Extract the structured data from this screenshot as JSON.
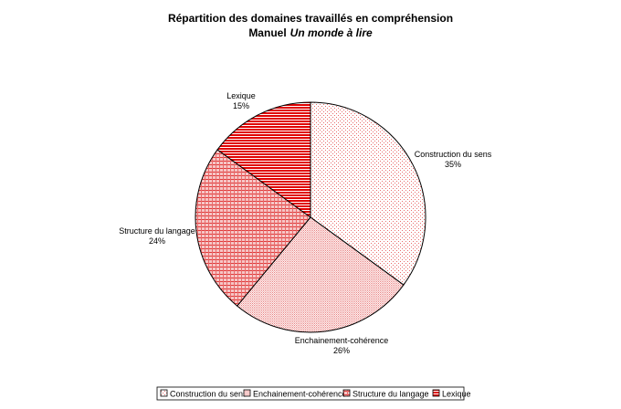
{
  "chart_data": {
    "type": "pie",
    "title": "Répartition des domaines travaillés en compréhension",
    "subtitle_prefix": "Manuel",
    "subtitle_italic": "Un monde à lire",
    "start_angle_deg": 0,
    "direction": "clockwise",
    "legend_placement": "bottom",
    "slices": [
      {
        "name": "Construction du sens",
        "value": 35,
        "label": "35%",
        "color": "#e86a6a",
        "pattern": "dots-sparse"
      },
      {
        "name": "Enchainement-cohérence",
        "value": 26,
        "label": "26%",
        "color": "#e86a6a",
        "pattern": "dots-dense"
      },
      {
        "name": "Structure du langage",
        "value": 24,
        "label": "24%",
        "color": "#e03a3a",
        "pattern": "grid"
      },
      {
        "name": "Lexique",
        "value": 15,
        "label": "15%",
        "color": "#e00000",
        "pattern": "horizontal-lines"
      }
    ]
  }
}
